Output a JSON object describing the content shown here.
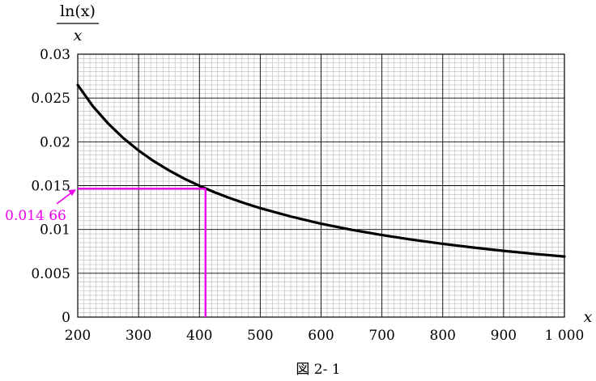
{
  "chart_data": {
    "type": "line",
    "title": "",
    "ylabel_numerator": "ln(x)",
    "ylabel_denominator": "x",
    "xlabel": "x",
    "xlim": [
      200,
      1000
    ],
    "ylim": [
      0,
      0.03
    ],
    "grid": true,
    "x_ticks": [
      {
        "value": 200,
        "label": "200"
      },
      {
        "value": 300,
        "label": "300"
      },
      {
        "value": 400,
        "label": "400"
      },
      {
        "value": 500,
        "label": "500"
      },
      {
        "value": 600,
        "label": "600"
      },
      {
        "value": 700,
        "label": "700"
      },
      {
        "value": 800,
        "label": "800"
      },
      {
        "value": 900,
        "label": "900"
      },
      {
        "value": 1000,
        "label": "1 000"
      }
    ],
    "y_ticks": [
      {
        "value": 0,
        "label": "0"
      },
      {
        "value": 0.005,
        "label": "0.005"
      },
      {
        "value": 0.01,
        "label": "0.01"
      },
      {
        "value": 0.015,
        "label": "0.015"
      },
      {
        "value": 0.02,
        "label": "0.02"
      },
      {
        "value": 0.025,
        "label": "0.025"
      },
      {
        "value": 0.03,
        "label": "0.03"
      }
    ],
    "series": [
      {
        "function": "ln(x)/x",
        "x": [
          200,
          225,
          250,
          275,
          300,
          325,
          350,
          375,
          400,
          425,
          450,
          475,
          500,
          550,
          600,
          650,
          700,
          750,
          800,
          850,
          900,
          950,
          1000
        ],
        "y": [
          0.02649,
          0.02405,
          0.02209,
          0.02042,
          0.01901,
          0.01779,
          0.01674,
          0.0158,
          0.01498,
          0.01424,
          0.01358,
          0.01298,
          0.01243,
          0.01148,
          0.01066,
          0.00996,
          0.00936,
          0.00883,
          0.00836,
          0.00794,
          0.00756,
          0.00722,
          0.00691
        ]
      }
    ],
    "annotation": {
      "label": "0.014 66",
      "x": 410,
      "y": 0.01466,
      "color": "#ee00ee"
    },
    "line_color": "#000000",
    "caption": "図 2- 1"
  }
}
